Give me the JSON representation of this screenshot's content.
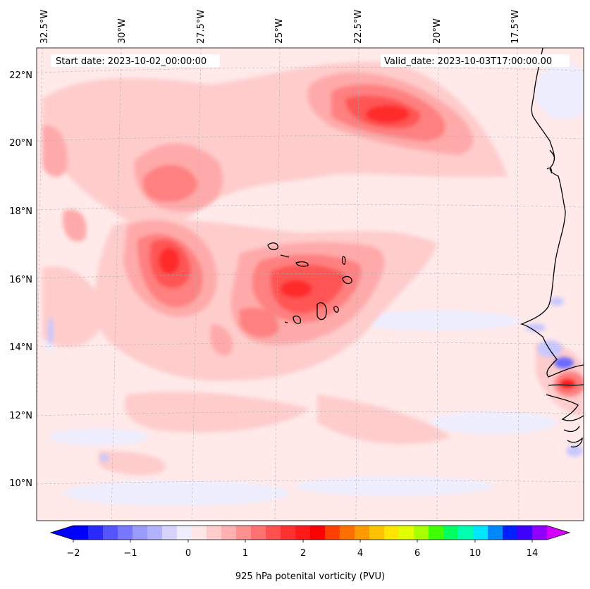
{
  "annotations": {
    "start_label": "Start date: 2023-10-02_00:00:00",
    "valid_label": "Valid_date: 2023-10-03T17:00:00.00"
  },
  "lon_ticks": [
    "32.5°W",
    "30°W",
    "27.5°W",
    "25°W",
    "22.5°W",
    "20°W",
    "17.5°W"
  ],
  "lat_ticks": [
    "22°N",
    "20°N",
    "18°N",
    "16°N",
    "14°N",
    "12°N",
    "10°N"
  ],
  "colorbar": {
    "title": "925 hPa potenital vorticity (PVU)",
    "tick_labels": [
      "−2",
      "−1",
      "0",
      "1",
      "2",
      "4",
      "6",
      "10",
      "14"
    ],
    "colors": [
      "#0000ff",
      "#2a2aff",
      "#5555ff",
      "#7777ff",
      "#9a9aff",
      "#b2b2ff",
      "#d4d4ff",
      "#eeeeff",
      "#ffe6e6",
      "#ffcccc",
      "#ffb0b0",
      "#ff9090",
      "#ff7070",
      "#ff5050",
      "#ff3030",
      "#ff1a1a",
      "#ff0000",
      "#ff4000",
      "#ff7000",
      "#ff9a00",
      "#ffc200",
      "#ffe600",
      "#e0ff00",
      "#a8ff00",
      "#40ff00",
      "#00ff60",
      "#00ffb0",
      "#00e6ff",
      "#0088ff",
      "#0020ff",
      "#4000ff",
      "#9000ff"
    ],
    "under_color": "#0000ff",
    "over_color": "#d400ff"
  },
  "field_colors": {
    "background": "#ffe9e9",
    "level1": "#ffcccc",
    "level2": "#ffaaaa",
    "level3": "#ff8080",
    "level4": "#ff5555",
    "level5": "#ff2a2a",
    "level6": "#ff1a1a",
    "negative1": "#eeeeff",
    "negative2": "#c8c8ff",
    "negative3": "#6a6aff"
  }
}
